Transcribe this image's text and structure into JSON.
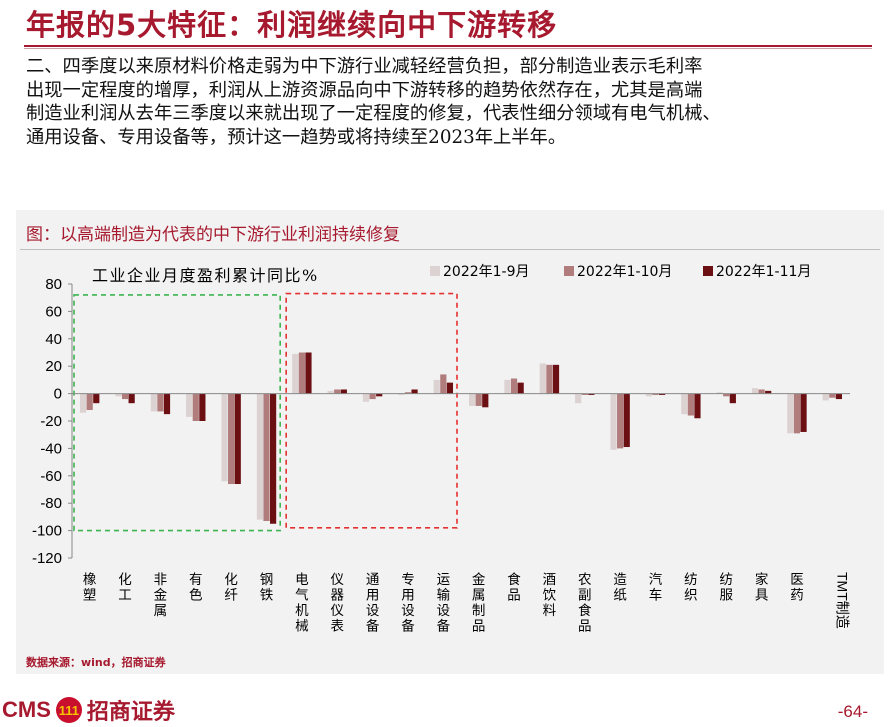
{
  "header": {
    "title": "年报的5大特征：利润继续向中下游转移"
  },
  "body": {
    "paragraph_lines": [
      "二、四季度以来原材料价格走弱为中下游行业减轻经营负担，部分制造业表示毛利率",
      "出现一定程度的增厚，利润从上游资源品向中下游转移的趋势依然存在，尤其是高端",
      "制造业利润从去年三季度以来就出现了一定程度的修复，代表性细分领域有电气机械、",
      "通用设备、专用设备等，预计这一趋势或将持续至2023年上半年。"
    ]
  },
  "figure": {
    "caption": "图：以高端制造为代表的中下游行业利润持续修复",
    "source": "数据来源：wind，招商证券"
  },
  "chart_data": {
    "type": "bar",
    "title": "工业企业月度盈利累计同比%",
    "categories": [
      "橡塑",
      "化工",
      "非金属",
      "有色",
      "化纤",
      "钢铁",
      "电气机械",
      "仪器仪表",
      "通用设备",
      "专用设备",
      "运输设备",
      "金属制品",
      "食品",
      "酒饮料",
      "农副食品",
      "造纸",
      "汽车",
      "纺织",
      "纺服",
      "家具",
      "医药",
      "TMT制造"
    ],
    "series": [
      {
        "name": "2022年1-9月",
        "color": "#ddd2d2",
        "values": [
          -14,
          -2,
          -13,
          -17,
          -64,
          -92,
          29,
          2,
          -6,
          -1,
          10,
          -9,
          10,
          22,
          -7,
          -41,
          -2,
          -15,
          1,
          4,
          -29,
          -5
        ]
      },
      {
        "name": "2022年1-10月",
        "color": "#b07c7c",
        "values": [
          -12,
          -4,
          -13,
          -20,
          -66,
          -93,
          30,
          3,
          -4,
          1,
          14,
          -9,
          11,
          21,
          -1,
          -40,
          -1,
          -16,
          -2,
          3,
          -29,
          -3
        ]
      },
      {
        "name": "2022年1-11月",
        "color": "#6b0f13",
        "values": [
          -7,
          -7,
          -15,
          -20,
          -66,
          -95,
          30,
          3,
          -2,
          3,
          8,
          -10,
          8,
          21,
          -1,
          -39,
          -1,
          -18,
          -7,
          2,
          -28,
          -4
        ]
      }
    ],
    "ylim": [
      -120,
      80
    ],
    "yticks": [
      80,
      60,
      40,
      20,
      0,
      -20,
      -40,
      -60,
      -80,
      -100,
      -120
    ],
    "xlabel": "",
    "ylabel": "",
    "legend_position": "top",
    "grid": false,
    "highlight_boxes": [
      {
        "color": "#3cb450",
        "from": "橡塑",
        "to": "钢铁",
        "y_range": [
          -100,
          72
        ]
      },
      {
        "color": "#e53030",
        "from": "电气机械",
        "to": "运输设备",
        "y_range": [
          -98,
          73
        ]
      }
    ]
  },
  "footer": {
    "logo_text": "CMS",
    "logo_badge": "111",
    "logo_cn": "招商证券",
    "page_number": "-64-"
  }
}
